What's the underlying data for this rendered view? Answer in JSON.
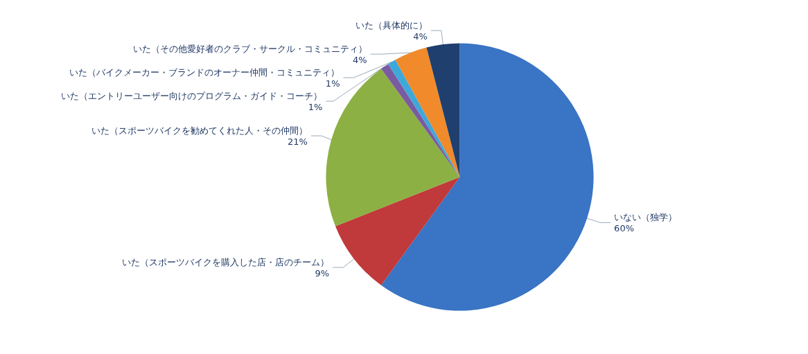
{
  "chart_data": {
    "type": "pie",
    "categories": [
      "いない（独学）",
      "いた（スポーツバイクを購入した店・店のチーム）",
      "いた（スポーツバイクを勧めてくれた人・その仲間）",
      "いた（エントリーユーザー向けのプログラム・ガイド・コーチ）",
      "いた（バイクメーカー・ブランドのオーナー仲間・コミュニティ）",
      "いた（その他愛好者のクラブ・サークル・コミュニティ）",
      "いた（具体的に）"
    ],
    "values": [
      60,
      9,
      21,
      1,
      1,
      4,
      4
    ],
    "value_labels": [
      "60%",
      "9%",
      "21%",
      "1%",
      "1%",
      "4%",
      "4%"
    ],
    "colors": [
      "#3a74c4",
      "#c0393b",
      "#8cb043",
      "#7a5aa0",
      "#3ea8d8",
      "#f08a2a",
      "#1f3f6e"
    ],
    "legend": false
  }
}
